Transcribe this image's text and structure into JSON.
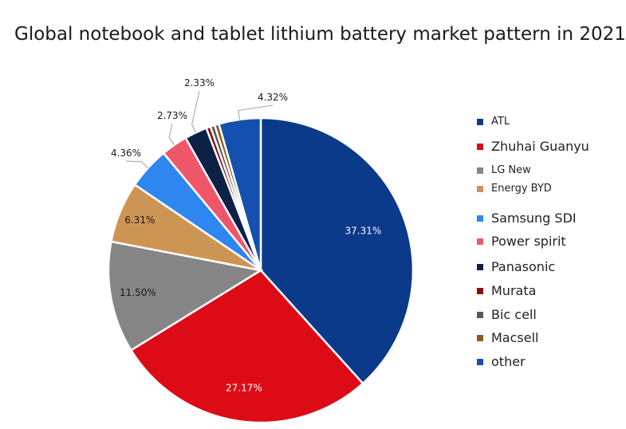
{
  "chart_data": {
    "type": "pie",
    "title": "Global notebook and tablet lithium battery market pattern in 2021",
    "slices": [
      {
        "label": "ATL",
        "value": 37.31,
        "display": "37.31%",
        "color": "#0b3a8a"
      },
      {
        "label": "Zhuhai Guanyu",
        "value": 27.17,
        "display": "27.17%",
        "color": "#dd0b16"
      },
      {
        "label": "LG New",
        "value": 11.5,
        "display": "11.50%",
        "color": "#858585"
      },
      {
        "label": "Energy BYD",
        "value": 6.31,
        "display": "6.31%",
        "color": "#cd9554"
      },
      {
        "label": "Samsung SDI",
        "value": 4.36,
        "display": "4.36%",
        "color": "#2e86f0"
      },
      {
        "label": "Power spirit",
        "value": 2.73,
        "display": "2.73%",
        "color": "#f0566a"
      },
      {
        "label": "Panasonic",
        "value": 2.33,
        "display": "2.33%",
        "color": "#0d2147"
      },
      {
        "label": "Murata",
        "value": 0.0,
        "display": "",
        "color": "#8a0f14"
      },
      {
        "label": "Bic cell",
        "value": 0.0,
        "display": "",
        "color": "#5a5a5a"
      },
      {
        "label": "Macsell",
        "value": 0.0,
        "display": "",
        "color": "#8c5a1e"
      },
      {
        "label": "other",
        "value": 4.32,
        "display": "4.32%",
        "color": "#1450b0"
      }
    ],
    "legend_placement": "right"
  }
}
